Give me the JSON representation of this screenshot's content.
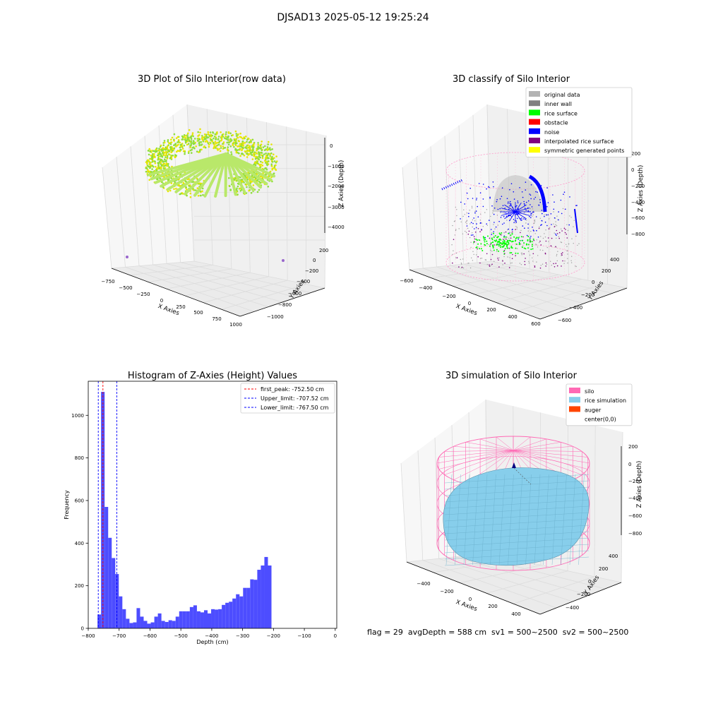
{
  "figure": {
    "suptitle": "DJSAD13 2025-05-12 19:25:24",
    "footer": "flag = 29  avgDepth = 588 cm  sv1 = 500~2500  sv2 = 500~2500"
  },
  "colors": {
    "pane": "#f2f2f2",
    "grid": "#dcdcdc",
    "hist_bar": "#4d4dff",
    "silo": "#ff69b4",
    "rice_sim": "#87ceeb",
    "auger": "#ff4500",
    "raw_yellow": "#e6e600",
    "raw_green": "#8ede3a"
  },
  "chart_data": [
    {
      "id": "raw",
      "type": "scatter",
      "title": "3D Plot of Silo Interior(row data)",
      "xlabel": "X Axies",
      "ylabel": "Y Axies",
      "zlabel": "Z Axies (Depth)",
      "xticks": [
        "−750",
        "−500",
        "−250",
        "0",
        "250",
        "500",
        "750",
        "1000"
      ],
      "yticks": [
        "200",
        "0",
        "−200",
        "−400",
        "−600",
        "−800",
        "−1000"
      ],
      "zticks": [
        "0",
        "−1000",
        "−2000",
        "−3000",
        "−4000"
      ]
    },
    {
      "id": "classify",
      "type": "scatter",
      "title": "3D classify of Silo Interior",
      "xlabel": "X Axies",
      "ylabel": "Y Axies",
      "zlabel": "Z Axies (Depth)",
      "xticks": [
        "−600",
        "−400",
        "−200",
        "0",
        "200",
        "400",
        "600"
      ],
      "yticks": [
        "400",
        "200",
        "0",
        "−200",
        "−400",
        "−600"
      ],
      "zticks": [
        "200",
        "0",
        "−200",
        "−400",
        "−600",
        "−800"
      ],
      "legend": [
        {
          "label": "original data",
          "color": "#b3b3b3"
        },
        {
          "label": "inner wall",
          "color": "#808080"
        },
        {
          "label": "rice surface",
          "color": "#00ff00"
        },
        {
          "label": "obstacle",
          "color": "#ff0000"
        },
        {
          "label": "noise",
          "color": "#0000ff"
        },
        {
          "label": "interpolated rice surface",
          "color": "#800080"
        },
        {
          "label": "symmetric generated points",
          "color": "#ffff00"
        }
      ],
      "legend_position": "top-right"
    },
    {
      "id": "histogram",
      "type": "bar",
      "title": "Histogram of Z-Axies (Height) Values",
      "xlabel": "Depth (cm)",
      "ylabel": "Frequency",
      "xlim": [
        -800,
        5
      ],
      "ylim": [
        0,
        1160
      ],
      "xticks": [
        -800,
        -700,
        -600,
        -500,
        -400,
        -300,
        -200,
        -100,
        0
      ],
      "yticks": [
        0,
        200,
        400,
        600,
        800,
        1000
      ],
      "bin_width": 11.5,
      "bins_start": -770,
      "counts": [
        65,
        1110,
        570,
        425,
        330,
        255,
        150,
        90,
        45,
        25,
        28,
        95,
        55,
        35,
        22,
        28,
        55,
        70,
        35,
        30,
        38,
        35,
        55,
        80,
        80,
        80,
        100,
        108,
        80,
        75,
        85,
        70,
        90,
        88,
        90,
        110,
        120,
        125,
        140,
        160,
        150,
        190,
        190,
        230,
        228,
        275,
        295,
        335,
        295
      ],
      "vlines": [
        {
          "x": -752.5,
          "color": "#ff0000",
          "label": "first_peak: -752.50 cm"
        },
        {
          "x": -707.52,
          "color": "#0000ff",
          "label": "Upper_limit: -707.52 cm"
        },
        {
          "x": -767.5,
          "color": "#0000ff",
          "label": "Lower_limit: -767.50 cm"
        }
      ],
      "legend_position": "top-right",
      "grid": false
    },
    {
      "id": "simulation",
      "type": "surface",
      "title": "3D simulation of Silo Interior",
      "xlabel": "X Axies",
      "ylabel": "Y Axies",
      "zlabel": "Z Axies (Depth)",
      "xticks": [
        "−400",
        "−200",
        "0",
        "200",
        "400"
      ],
      "yticks": [
        "400",
        "200",
        "0",
        "−200",
        "−400"
      ],
      "zticks": [
        "200",
        "0",
        "−200",
        "−400",
        "−600",
        "−800"
      ],
      "legend": [
        {
          "label": "silo",
          "color": "#ff69b4"
        },
        {
          "label": "rice simulation",
          "color": "#87ceeb"
        },
        {
          "label": "auger",
          "color": "#ff4500"
        },
        {
          "label": "center(0,0)",
          "color": ""
        }
      ],
      "legend_position": "top-right"
    }
  ]
}
